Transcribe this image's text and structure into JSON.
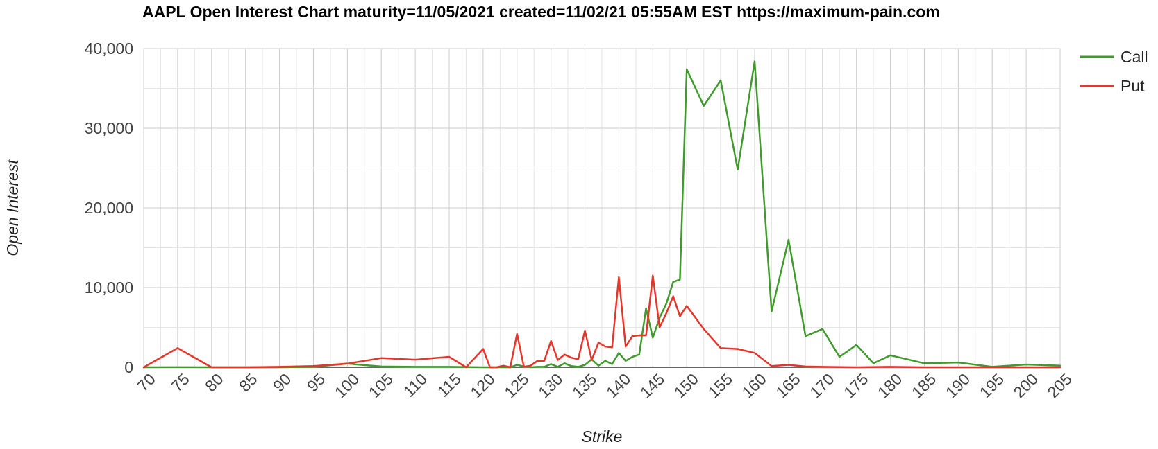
{
  "chart_data": {
    "type": "line",
    "title": "AAPL Open Interest Chart maturity=11/05/2021 created=11/02/21 05:55AM EST https://maximum-pain.com",
    "xlabel": "Strike",
    "ylabel": "Open Interest",
    "xlim": [
      70,
      205
    ],
    "ylim": [
      0,
      40000
    ],
    "x_ticks": [
      "70",
      "75",
      "80",
      "85",
      "90",
      "95",
      "100",
      "105",
      "110",
      "115",
      "120",
      "125",
      "130",
      "135",
      "140",
      "145",
      "150",
      "155",
      "160",
      "165",
      "170",
      "175",
      "180",
      "185",
      "190",
      "195",
      "200",
      "205"
    ],
    "y_ticks": [
      "0",
      "10,000",
      "20,000",
      "30,000",
      "40,000"
    ],
    "grid": true,
    "legend_position": "right",
    "series": [
      {
        "name": "Call",
        "color": "#3f9b2c",
        "points": [
          [
            70,
            0
          ],
          [
            75,
            10
          ],
          [
            80,
            0
          ],
          [
            85,
            0
          ],
          [
            90,
            0
          ],
          [
            95,
            50
          ],
          [
            100,
            450
          ],
          [
            105,
            100
          ],
          [
            110,
            50
          ],
          [
            115,
            50
          ],
          [
            120,
            0
          ],
          [
            121,
            0
          ],
          [
            122,
            0
          ],
          [
            123,
            0
          ],
          [
            124,
            0
          ],
          [
            125,
            300
          ],
          [
            126,
            100
          ],
          [
            127,
            0
          ],
          [
            128,
            50
          ],
          [
            129,
            50
          ],
          [
            130,
            400
          ],
          [
            131,
            50
          ],
          [
            132,
            500
          ],
          [
            133,
            150
          ],
          [
            134,
            50
          ],
          [
            135,
            300
          ],
          [
            136,
            1000
          ],
          [
            137,
            200
          ],
          [
            138,
            800
          ],
          [
            139,
            400
          ],
          [
            140,
            1800
          ],
          [
            141,
            800
          ],
          [
            142,
            1300
          ],
          [
            143,
            1600
          ],
          [
            144,
            7400
          ],
          [
            145,
            3700
          ],
          [
            146,
            6200
          ],
          [
            147,
            8000
          ],
          [
            148,
            10700
          ],
          [
            149,
            11000
          ],
          [
            150,
            37400
          ],
          [
            152.5,
            32800
          ],
          [
            155,
            36000
          ],
          [
            157.5,
            24800
          ],
          [
            160,
            38400
          ],
          [
            162.5,
            7000
          ],
          [
            165,
            16000
          ],
          [
            167.5,
            3900
          ],
          [
            170,
            4800
          ],
          [
            172.5,
            1300
          ],
          [
            175,
            2800
          ],
          [
            177.5,
            500
          ],
          [
            180,
            1500
          ],
          [
            185,
            500
          ],
          [
            190,
            600
          ],
          [
            195,
            50
          ],
          [
            200,
            350
          ],
          [
            205,
            200
          ]
        ]
      },
      {
        "name": "Put",
        "color": "#e8352a",
        "points": [
          [
            70,
            0
          ],
          [
            75,
            2400
          ],
          [
            80,
            0
          ],
          [
            85,
            0
          ],
          [
            90,
            50
          ],
          [
            95,
            150
          ],
          [
            100,
            450
          ],
          [
            105,
            1150
          ],
          [
            110,
            950
          ],
          [
            115,
            1300
          ],
          [
            117.5,
            0
          ],
          [
            120,
            2300
          ],
          [
            121,
            0
          ],
          [
            122,
            0
          ],
          [
            123,
            200
          ],
          [
            124,
            0
          ],
          [
            125,
            4200
          ],
          [
            126,
            50
          ],
          [
            127,
            200
          ],
          [
            128,
            800
          ],
          [
            129,
            800
          ],
          [
            130,
            3300
          ],
          [
            131,
            900
          ],
          [
            132,
            1600
          ],
          [
            133,
            1200
          ],
          [
            134,
            1000
          ],
          [
            135,
            4600
          ],
          [
            136,
            900
          ],
          [
            137,
            3100
          ],
          [
            138,
            2600
          ],
          [
            139,
            2500
          ],
          [
            140,
            11300
          ],
          [
            141,
            2600
          ],
          [
            142,
            3900
          ],
          [
            143,
            4000
          ],
          [
            144,
            4000
          ],
          [
            145,
            11500
          ],
          [
            146,
            5000
          ],
          [
            147,
            6800
          ],
          [
            148,
            8900
          ],
          [
            149,
            6400
          ],
          [
            150,
            7700
          ],
          [
            152.5,
            4800
          ],
          [
            155,
            2400
          ],
          [
            157.5,
            2300
          ],
          [
            160,
            1800
          ],
          [
            162.5,
            150
          ],
          [
            165,
            300
          ],
          [
            167.5,
            100
          ],
          [
            170,
            50
          ],
          [
            175,
            0
          ],
          [
            180,
            50
          ],
          [
            185,
            0
          ],
          [
            190,
            0
          ],
          [
            195,
            0
          ],
          [
            200,
            0
          ],
          [
            205,
            0
          ]
        ]
      }
    ]
  }
}
